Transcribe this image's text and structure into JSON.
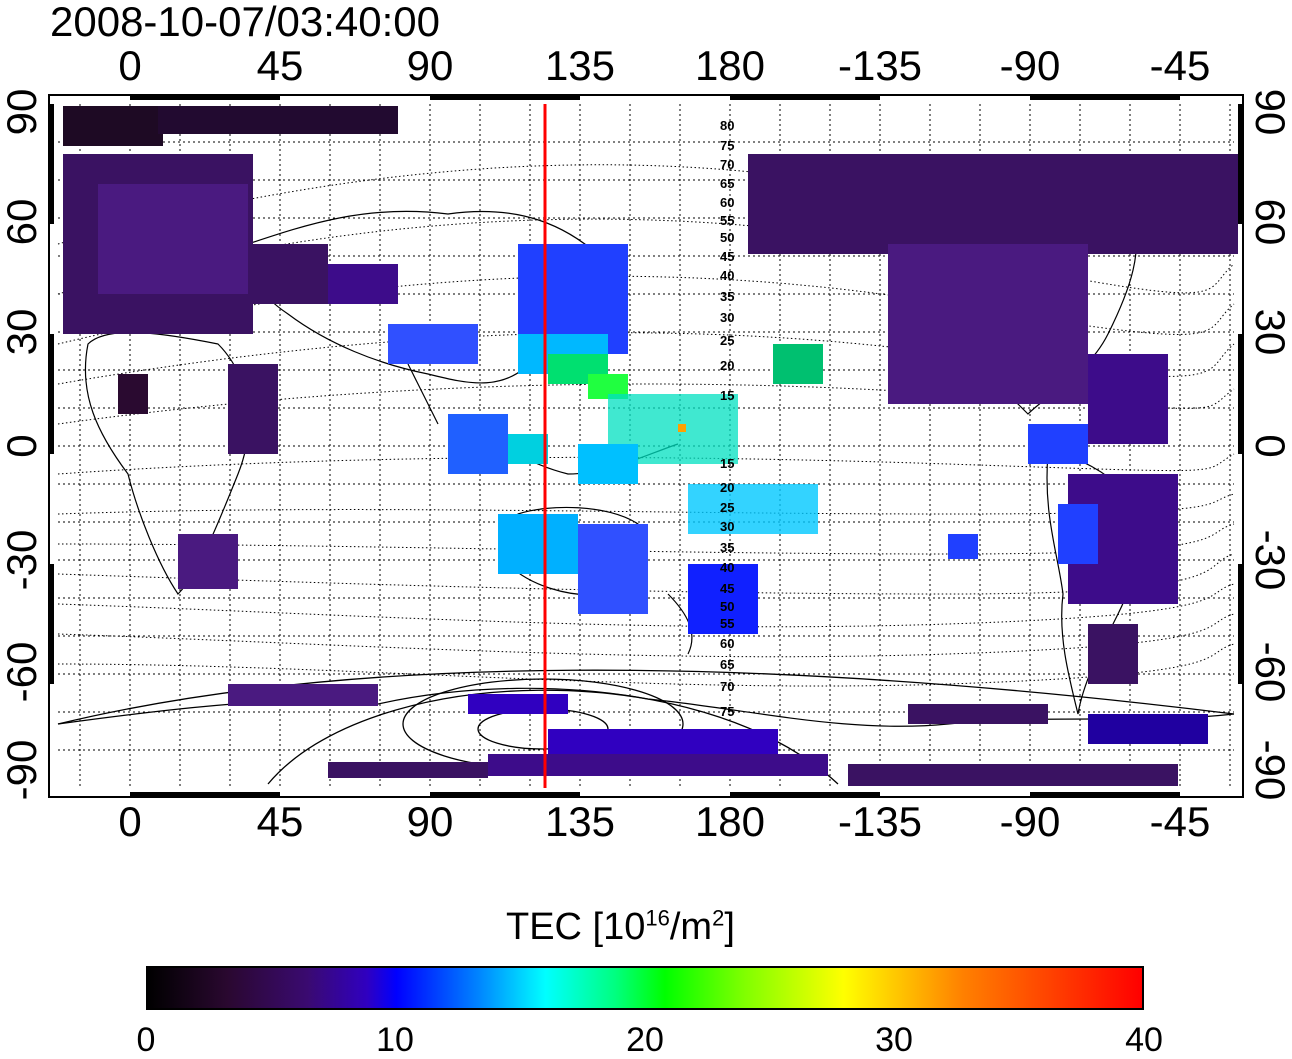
{
  "header": {
    "timestamp": "2008-10-07/03:40:00"
  },
  "axes": {
    "lon_ticks_top": [
      "0",
      "45",
      "90",
      "135",
      "180",
      "-135",
      "-90",
      "-45"
    ],
    "lon_ticks_bottom": [
      "0",
      "45",
      "90",
      "135",
      "180",
      "-135",
      "-90",
      "-45"
    ],
    "lat_ticks_left": [
      "90",
      "60",
      "30",
      "0",
      "-30",
      "-60",
      "-90"
    ],
    "lat_ticks_right": [
      "90",
      "60",
      "30",
      "0",
      "-30",
      "-60",
      "-90"
    ]
  },
  "magnetic_latitude_labels": {
    "north": [
      "80",
      "75",
      "70",
      "65",
      "60",
      "55",
      "50",
      "45",
      "40",
      "35",
      "30",
      "25",
      "20",
      "15"
    ],
    "south": [
      "15",
      "20",
      "25",
      "30",
      "35",
      "40",
      "45",
      "50",
      "55",
      "60",
      "65",
      "70",
      "75"
    ]
  },
  "overlay": {
    "meridian_longitude": 125,
    "line_color": "#ff0000"
  },
  "colorbar": {
    "title": "TEC  [10",
    "title_exp": "16",
    "title_mid": "/m",
    "title_exp2": "2",
    "title_end": "]",
    "ticks": [
      "0",
      "10",
      "20",
      "30",
      "40"
    ],
    "range": [
      0,
      40
    ]
  },
  "colors": {
    "low": "#3a0a5e",
    "mid": "#0000ff",
    "cyan": "#00ffff",
    "green": "#00ff00",
    "high": "#ff0000"
  }
}
